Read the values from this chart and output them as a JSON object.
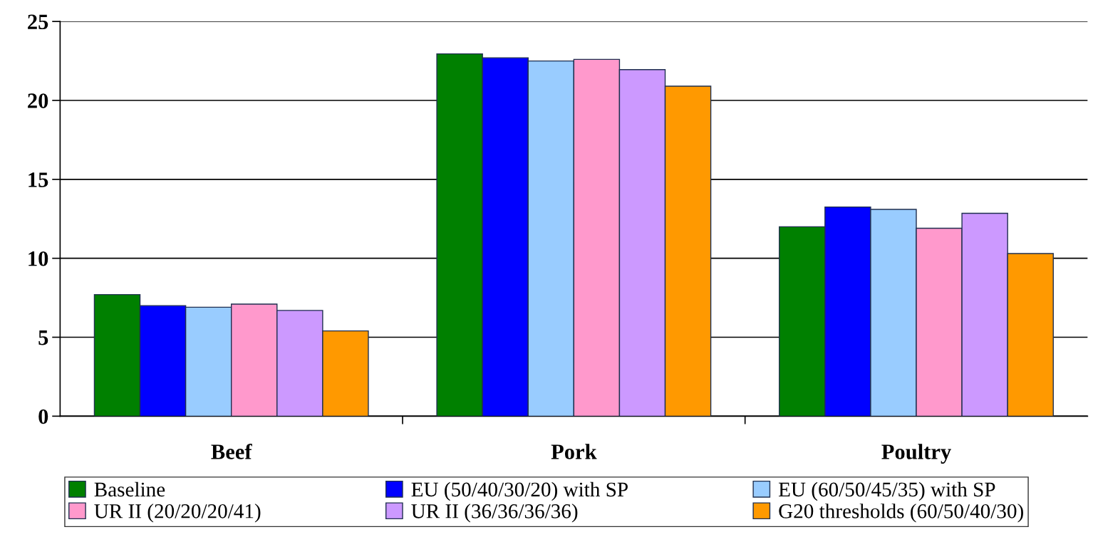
{
  "chart_data": {
    "type": "bar",
    "categories": [
      "Beef",
      "Pork",
      "Poultry"
    ],
    "series": [
      {
        "name": "Baseline",
        "color": "#008000",
        "values": [
          7.7,
          22.95,
          12.0
        ]
      },
      {
        "name": "EU (50/40/30/20) with SP",
        "color": "#0000ff",
        "values": [
          7.0,
          22.7,
          13.25
        ]
      },
      {
        "name": "EU (60/50/45/35) with SP",
        "color": "#99ccff",
        "values": [
          6.9,
          22.5,
          13.1
        ]
      },
      {
        "name": "UR II (20/20/20/41)",
        "color": "#ff99cc",
        "values": [
          7.1,
          22.6,
          11.9
        ]
      },
      {
        "name": "UR II (36/36/36/36)",
        "color": "#cc99ff",
        "values": [
          6.7,
          21.95,
          12.85
        ]
      },
      {
        "name": "G20 thresholds (60/50/40/30)",
        "color": "#ff9900",
        "values": [
          5.4,
          20.9,
          10.3
        ]
      }
    ],
    "ylim": [
      0,
      25
    ],
    "yticks": [
      0,
      5,
      10,
      15,
      20,
      25
    ],
    "grid": "y",
    "legend": "bottom"
  }
}
